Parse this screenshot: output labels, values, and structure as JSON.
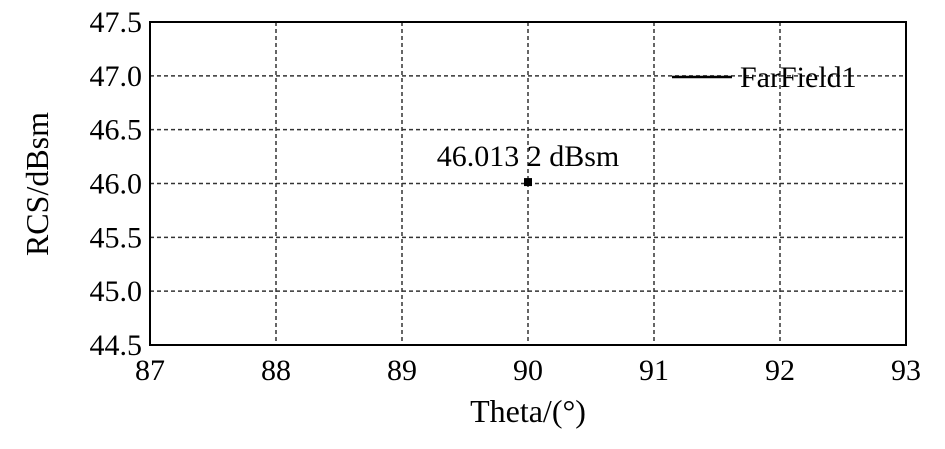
{
  "chart_data": {
    "type": "line",
    "xlabel": "Theta/(°)",
    "ylabel": "RCS/dBsm",
    "x": [
      90
    ],
    "series": [
      {
        "name": "FarField1",
        "color": "#000000",
        "values": [
          46.0132
        ],
        "value_labels": [
          "46.013 2 dBsm"
        ]
      }
    ],
    "xlim": [
      87,
      93
    ],
    "xticks": [
      87,
      88,
      89,
      90,
      91,
      92,
      93
    ],
    "ylim": [
      44.5,
      47.5
    ],
    "yticks": [
      44.5,
      {
        "value": 45,
        "label": "45.0"
      },
      45.5,
      {
        "value": 46,
        "label": "46.0"
      },
      46.5,
      {
        "value": 47,
        "label": "47.0"
      },
      47.5
    ],
    "grid": true,
    "legend": "upper right"
  }
}
